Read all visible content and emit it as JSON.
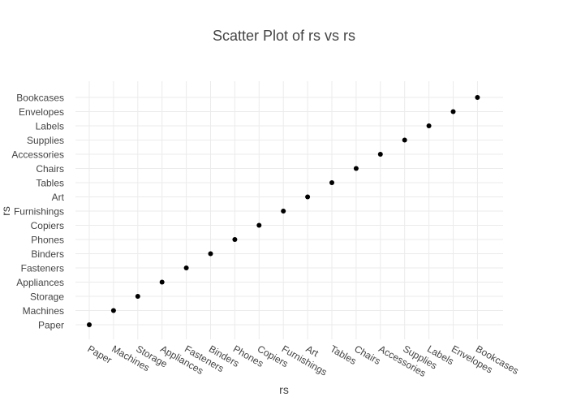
{
  "chart_data": {
    "type": "scatter",
    "title": "Scatter Plot of rs vs rs",
    "xlabel": "rs",
    "ylabel": "rs",
    "categories": [
      "Paper",
      "Machines",
      "Storage",
      "Appliances",
      "Fasteners",
      "Binders",
      "Phones",
      "Copiers",
      "Furnishings",
      "Art",
      "Tables",
      "Chairs",
      "Accessories",
      "Supplies",
      "Labels",
      "Envelopes",
      "Bookcases"
    ],
    "points": [
      {
        "x": "Paper",
        "y": "Paper"
      },
      {
        "x": "Machines",
        "y": "Machines"
      },
      {
        "x": "Storage",
        "y": "Storage"
      },
      {
        "x": "Appliances",
        "y": "Appliances"
      },
      {
        "x": "Fasteners",
        "y": "Fasteners"
      },
      {
        "x": "Binders",
        "y": "Binders"
      },
      {
        "x": "Phones",
        "y": "Phones"
      },
      {
        "x": "Copiers",
        "y": "Copiers"
      },
      {
        "x": "Furnishings",
        "y": "Furnishings"
      },
      {
        "x": "Art",
        "y": "Art"
      },
      {
        "x": "Tables",
        "y": "Tables"
      },
      {
        "x": "Chairs",
        "y": "Chairs"
      },
      {
        "x": "Accessories",
        "y": "Accessories"
      },
      {
        "x": "Supplies",
        "y": "Supplies"
      },
      {
        "x": "Labels",
        "y": "Labels"
      },
      {
        "x": "Envelopes",
        "y": "Envelopes"
      },
      {
        "x": "Bookcases",
        "y": "Bookcases"
      }
    ],
    "grid": true,
    "marker_color": "#000000",
    "grid_color": "#ebebeb",
    "text_color": "#444444"
  }
}
